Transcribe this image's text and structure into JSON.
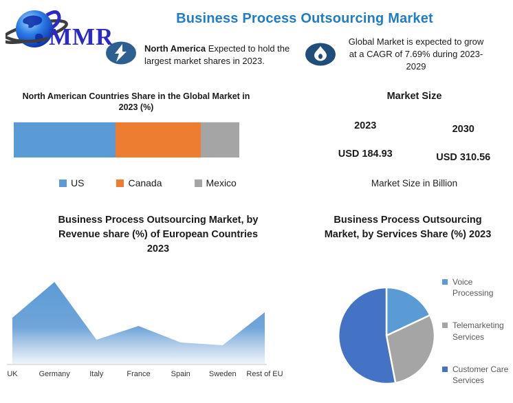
{
  "header": {
    "logo_text": "MMR",
    "title": "Business Process Outsourcing Market",
    "title_color": "#1F7DC5"
  },
  "callouts": [
    {
      "icon": "lightning-bolt",
      "highlight": "North America",
      "rest": " Expected to hold the largest market shares in 2023."
    },
    {
      "icon": "flame",
      "text": "Global Market is expected to grow at a CAGR of 7.69% during 2023-2029"
    }
  ],
  "market_size": {
    "title": "Market Size",
    "columns": [
      {
        "year": "2023",
        "value": "USD 184.93"
      },
      {
        "year": "2030",
        "value": "USD 310.56"
      }
    ],
    "caption": "Market Size in Billion"
  },
  "chart_data": [
    {
      "id": "na_share",
      "type": "bar",
      "subtype": "horizontal-stacked",
      "title": "North American Countries Share in the Global Market in 2023 (%)",
      "categories": [
        "US",
        "Canada",
        "Mexico"
      ],
      "values": [
        45,
        38,
        17
      ],
      "colors": [
        "#5B9BD5",
        "#ED7D31",
        "#A5A5A5"
      ],
      "legend_position": "bottom",
      "grid": false
    },
    {
      "id": "eu_revenue",
      "type": "area",
      "title": "Business Process Outsourcing Market, by Revenue share (%) of European Countries 2023",
      "categories": [
        "UK",
        "Germany",
        "Italy",
        "France",
        "Spain",
        "Sweden",
        "Rest of EU"
      ],
      "values": [
        17,
        30,
        9,
        14,
        8,
        7,
        19
      ],
      "color": "#5B9BD5",
      "xlabel": "",
      "ylabel": "",
      "ylim": [
        0,
        32
      ],
      "grid": false,
      "legend_position": "none"
    },
    {
      "id": "services_share",
      "type": "pie",
      "title": "Business Process Outsourcing Market, by Services Share (%) 2023",
      "categories": [
        "Voice Processing",
        "Telemarketing Services",
        "Customer Care Services"
      ],
      "values": [
        18,
        29,
        53
      ],
      "colors": [
        "#5B9BD5",
        "#A5A5A5",
        "#4472C4"
      ],
      "legend_position": "right"
    }
  ],
  "colors": {
    "icon_badge_bolt": "#2D5F91",
    "icon_badge_flame": "#1E4E79",
    "logo_text": "#2B2BC4",
    "axis_line": "#D9D9D9",
    "legend_text": "#595959"
  }
}
